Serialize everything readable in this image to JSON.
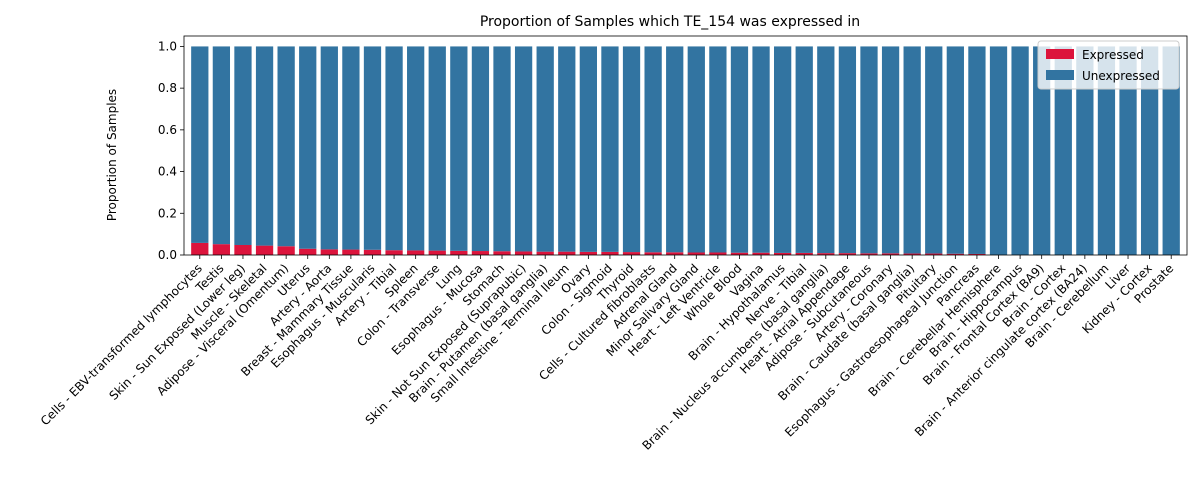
{
  "chart_data": {
    "type": "bar",
    "stacked": true,
    "title": "Proportion of Samples which TE_154 was expressed in",
    "xlabel": "",
    "ylabel": "Proportion of Samples",
    "ylim": [
      0,
      1.05
    ],
    "yticks": [
      "0.0",
      "0.2",
      "0.4",
      "0.6",
      "0.8",
      "1.0"
    ],
    "grid": false,
    "legend_position": "top-right",
    "categories": [
      "Cells - EBV-transformed lymphocytes",
      "Testis",
      "Skin - Sun Exposed (Lower leg)",
      "Muscle - Skeletal",
      "Adipose - Visceral (Omentum)",
      "Uterus",
      "Artery - Aorta",
      "Breast - Mammary Tissue",
      "Esophagus - Muscularis",
      "Artery - Tibial",
      "Spleen",
      "Colon - Transverse",
      "Lung",
      "Esophagus - Mucosa",
      "Stomach",
      "Skin - Not Sun Exposed (Suprapubic)",
      "Brain - Putamen (basal ganglia)",
      "Small Intestine - Terminal Ileum",
      "Ovary",
      "Colon - Sigmoid",
      "Thyroid",
      "Cells - Cultured fibroblasts",
      "Adrenal Gland",
      "Minor Salivary Gland",
      "Heart - Left Ventricle",
      "Whole Blood",
      "Vagina",
      "Brain - Hypothalamus",
      "Nerve - Tibial",
      "Brain - Nucleus accumbens (basal ganglia)",
      "Heart - Atrial Appendage",
      "Adipose - Subcutaneous",
      "Artery - Coronary",
      "Brain - Caudate (basal ganglia)",
      "Pituitary",
      "Esophagus - Gastroesophageal Junction",
      "Pancreas",
      "Brain - Cerebellar Hemisphere",
      "Brain - Hippocampus",
      "Brain - Frontal Cortex (BA9)",
      "Brain - Cortex",
      "Brain - Anterior cingulate cortex (BA24)",
      "Brain - Cerebellum",
      "Liver",
      "Kidney - Cortex",
      "Prostate"
    ],
    "series": [
      {
        "name": "Expressed",
        "color": "#dc143c",
        "values": [
          0.058,
          0.052,
          0.048,
          0.045,
          0.042,
          0.03,
          0.027,
          0.026,
          0.025,
          0.023,
          0.022,
          0.021,
          0.02,
          0.019,
          0.018,
          0.017,
          0.016,
          0.016,
          0.015,
          0.015,
          0.014,
          0.013,
          0.013,
          0.012,
          0.012,
          0.011,
          0.011,
          0.01,
          0.01,
          0.009,
          0.009,
          0.008,
          0.008,
          0.007,
          0.007,
          0.006,
          0.005,
          0.0,
          0.0,
          0.0,
          0.0,
          0.0,
          0.0,
          0.0,
          0.0,
          0.0
        ]
      },
      {
        "name": "Unexpressed",
        "color": "#3274a1",
        "values": [
          0.942,
          0.948,
          0.952,
          0.955,
          0.958,
          0.97,
          0.973,
          0.974,
          0.975,
          0.977,
          0.978,
          0.979,
          0.98,
          0.981,
          0.982,
          0.983,
          0.984,
          0.984,
          0.985,
          0.985,
          0.986,
          0.987,
          0.987,
          0.988,
          0.988,
          0.989,
          0.989,
          0.99,
          0.99,
          0.991,
          0.991,
          0.992,
          0.992,
          0.993,
          0.993,
          0.994,
          0.995,
          1.0,
          1.0,
          1.0,
          1.0,
          1.0,
          1.0,
          1.0,
          1.0,
          1.0
        ]
      }
    ]
  }
}
